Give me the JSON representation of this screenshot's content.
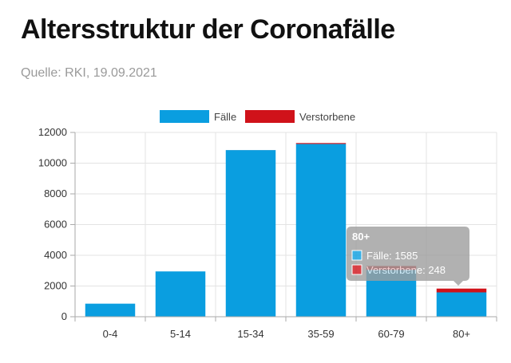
{
  "header": {
    "title": "Altersstruktur der Coronafälle",
    "source": "Quelle: RKI, 19.09.2021"
  },
  "colors": {
    "faelle": "#0a9ee0",
    "verstorbene": "#d0121a",
    "grid": "#e3e3e3",
    "axis": "#aaaaaa"
  },
  "chart_data": {
    "type": "bar",
    "stacked": true,
    "categories": [
      "0-4",
      "5-14",
      "15-34",
      "35-59",
      "60-79",
      "80+"
    ],
    "series": [
      {
        "name": "Fälle",
        "values": [
          850,
          2950,
          10850,
          11250,
          3050,
          1585
        ]
      },
      {
        "name": "Verstorbene",
        "values": [
          0,
          0,
          2,
          60,
          250,
          248
        ]
      }
    ],
    "ylim": [
      0,
      12000
    ],
    "yticks": [
      0,
      2000,
      4000,
      6000,
      8000,
      10000,
      12000
    ],
    "grid": true,
    "legend": "top-center",
    "tooltip": {
      "category": "80+",
      "faelle_label": "Fälle: 1585",
      "verstorbene_label": "Verstorbene: 248"
    }
  }
}
